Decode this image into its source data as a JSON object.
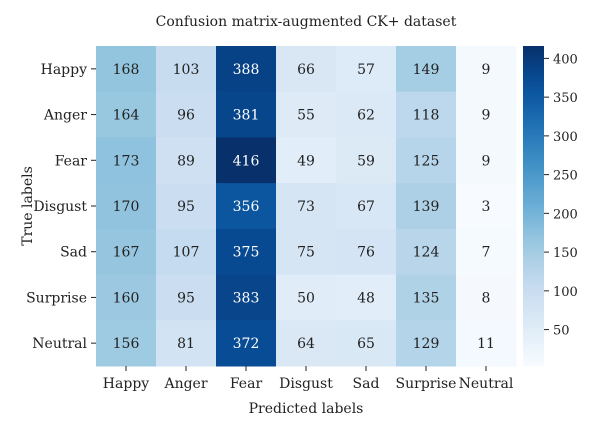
{
  "chart_data": {
    "type": "heatmap",
    "title": "Confusion matrix-augmented CK+ dataset",
    "xlabel": "Predicted labels",
    "ylabel": "True labels",
    "x_categories": [
      "Happy",
      "Anger",
      "Fear",
      "Disgust",
      "Sad",
      "Surprise",
      "Neutral"
    ],
    "y_categories": [
      "Happy",
      "Anger",
      "Fear",
      "Disgust",
      "Sad",
      "Surprise",
      "Neutral"
    ],
    "values": [
      [
        168,
        103,
        388,
        66,
        57,
        149,
        9
      ],
      [
        164,
        96,
        381,
        55,
        62,
        118,
        9
      ],
      [
        173,
        89,
        416,
        49,
        59,
        125,
        9
      ],
      [
        170,
        95,
        356,
        73,
        67,
        139,
        3
      ],
      [
        167,
        107,
        375,
        75,
        76,
        124,
        7
      ],
      [
        160,
        95,
        383,
        50,
        48,
        135,
        8
      ],
      [
        156,
        81,
        372,
        64,
        65,
        129,
        11
      ]
    ],
    "colorbar": {
      "range": [
        3,
        416
      ],
      "ticks": [
        50,
        100,
        150,
        200,
        250,
        300,
        350,
        400
      ],
      "colormap": "Blues"
    },
    "grid": false
  }
}
